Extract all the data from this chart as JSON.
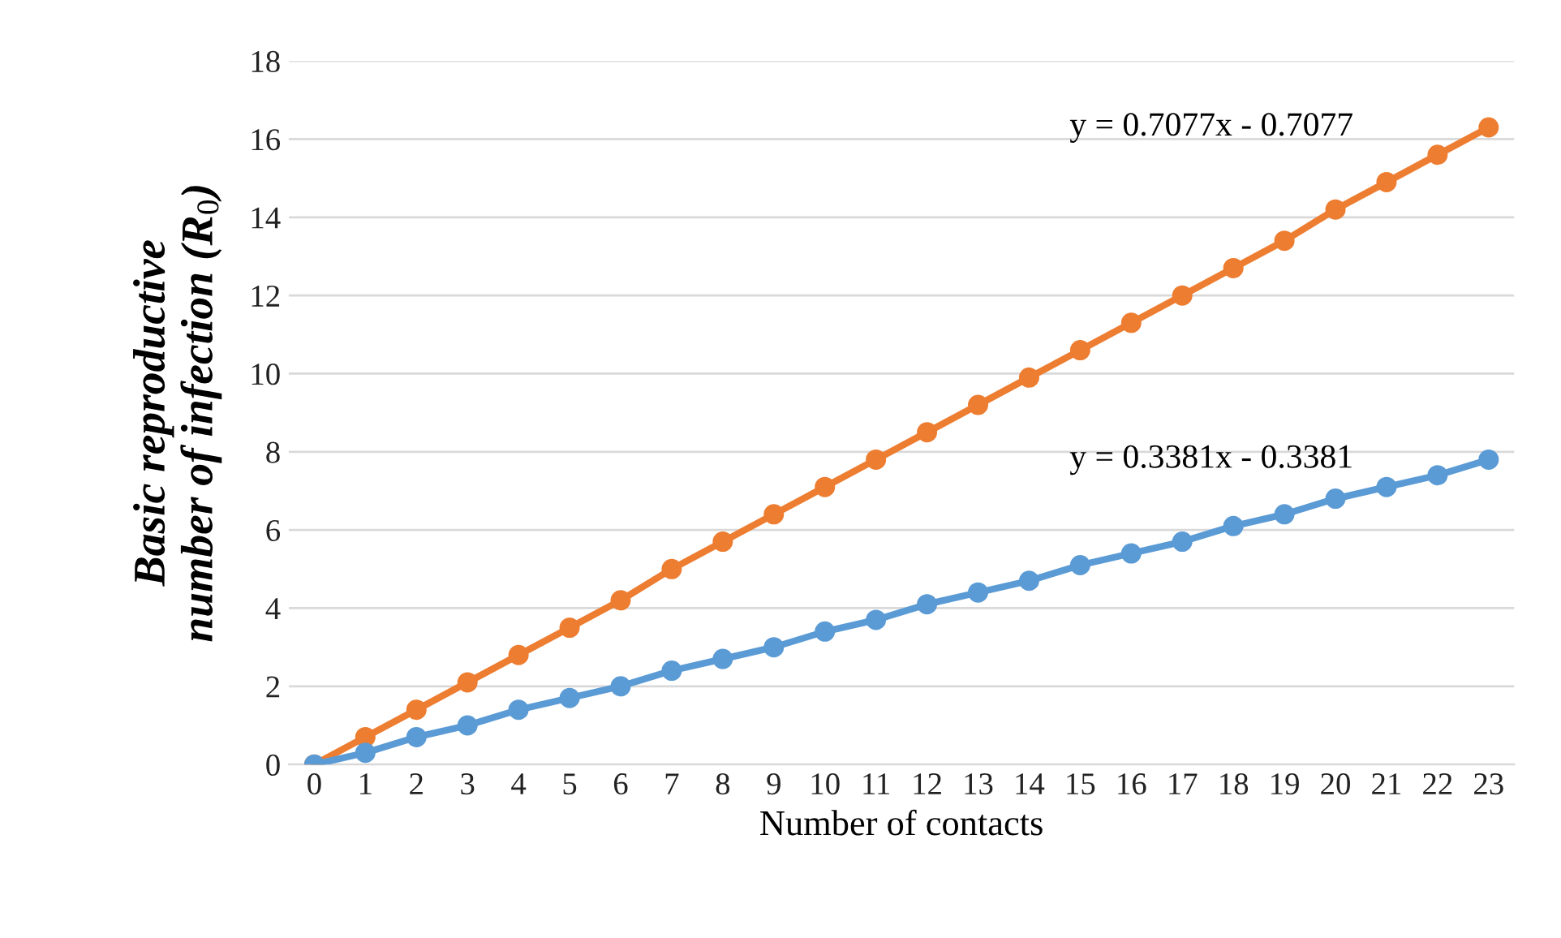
{
  "chart_data": {
    "type": "line",
    "xlabel": "Number of contacts",
    "ylabel": "Basic reproductive\nnumber of infection (R$_{0}$)",
    "categories": [
      "0",
      "1",
      "2",
      "3",
      "4",
      "5",
      "6",
      "7",
      "8",
      "9",
      "10",
      "11",
      "12",
      "13",
      "14",
      "15",
      "16",
      "17",
      "18",
      "19",
      "20",
      "21",
      "22",
      "23"
    ],
    "series": [
      {
        "color": "#ed7d31",
        "values": [
          0,
          0.7,
          1.4,
          2.1,
          2.8,
          3.5,
          4.2,
          5.0,
          5.7,
          6.4,
          7.1,
          7.8,
          8.5,
          9.2,
          9.9,
          10.6,
          11.3,
          12.0,
          12.7,
          13.4,
          14.2,
          14.9,
          15.6,
          16.3
        ]
      },
      {
        "color": "#5b9bd5",
        "values": [
          0,
          0.3,
          0.7,
          1.0,
          1.4,
          1.7,
          2.0,
          2.4,
          2.7,
          3.0,
          3.4,
          3.7,
          4.1,
          4.4,
          4.7,
          5.1,
          5.4,
          5.7,
          6.1,
          6.4,
          6.8,
          7.1,
          7.4,
          7.8
        ]
      }
    ],
    "annotations": [
      "y = 0.7077x - 0.7077",
      "y = 0.3381x - 0.3381"
    ],
    "ylim": [
      0,
      18
    ],
    "yticks": [
      0,
      2,
      4,
      6,
      8,
      10,
      12,
      14,
      16,
      18
    ],
    "grid": "y",
    "marker": "circle",
    "line_style": "solid"
  }
}
